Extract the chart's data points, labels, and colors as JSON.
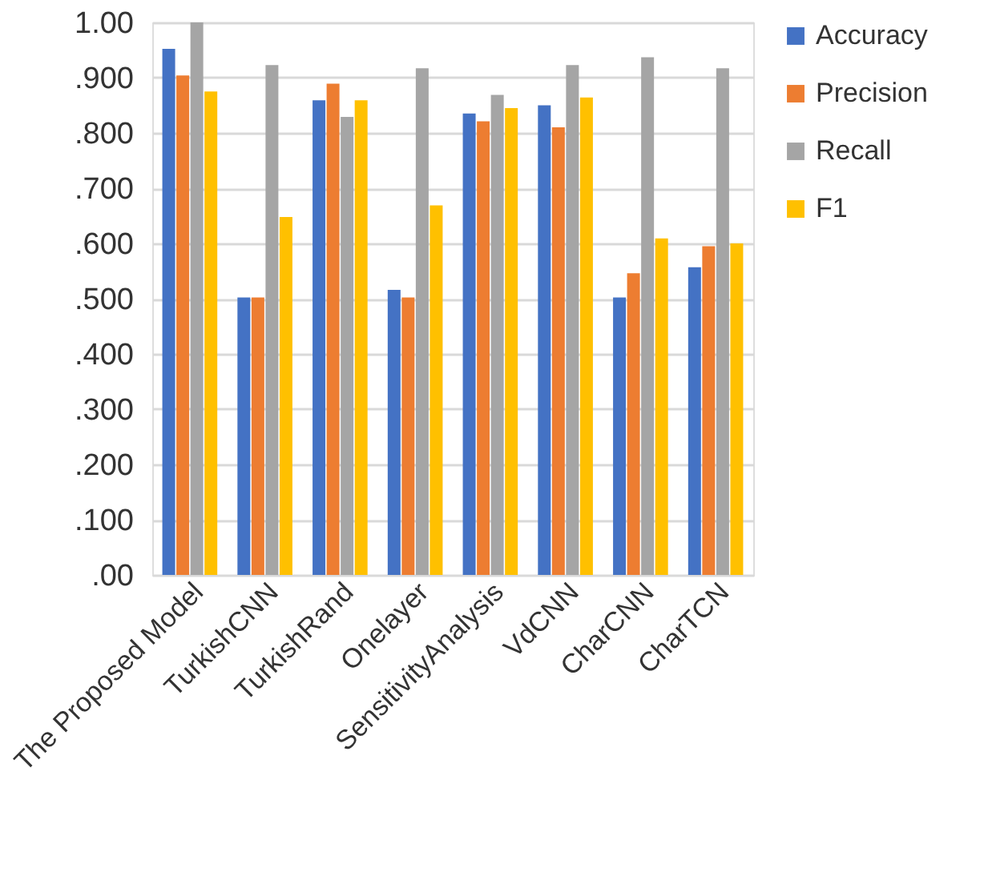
{
  "chart_data": {
    "type": "bar",
    "categories": [
      "The Proposed Model",
      "TurkishCNN",
      "TurkishRand",
      "Onelayer",
      "SensitivityAnalysis",
      "VdCNN",
      "CharCNN",
      "CharTCN"
    ],
    "series": [
      {
        "name": "Accuracy",
        "color": "#4472c4",
        "values": [
          0.952,
          0.502,
          0.859,
          0.516,
          0.835,
          0.85,
          0.502,
          0.557
        ]
      },
      {
        "name": "Precision",
        "color": "#ed7d31",
        "values": [
          0.904,
          0.502,
          0.889,
          0.502,
          0.821,
          0.81,
          0.546,
          0.595
        ]
      },
      {
        "name": "Recall",
        "color": "#a5a5a5",
        "values": [
          1.0,
          0.923,
          0.829,
          0.917,
          0.869,
          0.923,
          0.937,
          0.917
        ]
      },
      {
        "name": "F1",
        "color": "#ffc000",
        "values": [
          0.875,
          0.648,
          0.859,
          0.669,
          0.845,
          0.864,
          0.609,
          0.6
        ]
      }
    ],
    "ylim": [
      0,
      1.0
    ],
    "yticks": [
      {
        "value": 0,
        "label": ".00"
      },
      {
        "value": 0.1,
        "label": ".100"
      },
      {
        "value": 0.2,
        "label": ".200"
      },
      {
        "value": 0.3,
        "label": ".300"
      },
      {
        "value": 0.4,
        "label": ".400"
      },
      {
        "value": 0.5,
        "label": ".500"
      },
      {
        "value": 0.6,
        "label": ".600"
      },
      {
        "value": 0.7,
        "label": ".700"
      },
      {
        "value": 0.8,
        "label": ".800"
      },
      {
        "value": 0.9,
        "label": ".900"
      },
      {
        "value": 1.0,
        "label": "1.00"
      }
    ],
    "grid": "y",
    "legend": "right"
  }
}
